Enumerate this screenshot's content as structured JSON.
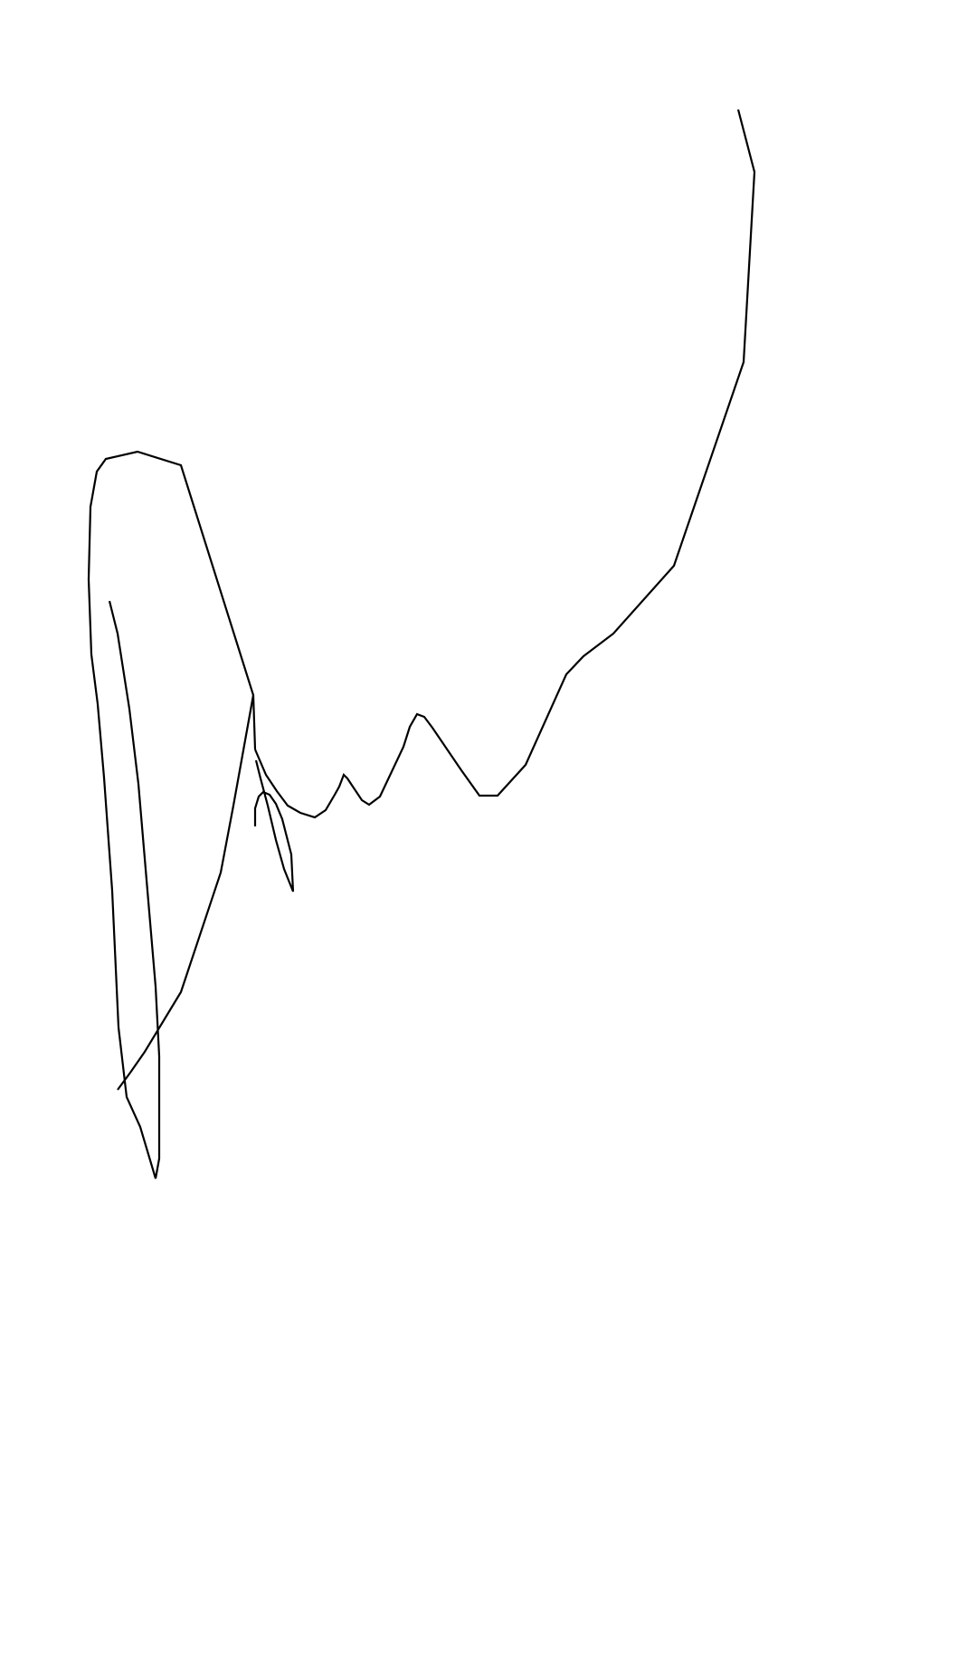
{
  "canvas": {
    "background": "#ffffff"
  },
  "drawing": {
    "content": "handwritten-signature",
    "ink_color": "#000000"
  }
}
